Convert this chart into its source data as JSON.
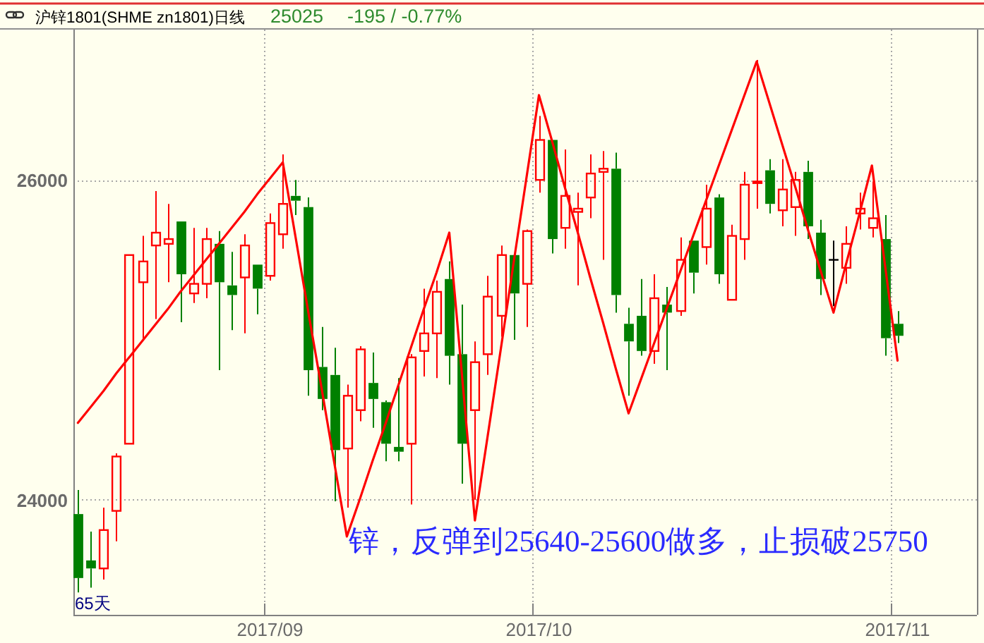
{
  "chart_data": {
    "type": "candlestick",
    "title": "沪锌1801(SHME zn1801)日线",
    "annotations": [
      "25025",
      "-195 / -0.77%",
      "锌，反弹到25640-25600做多，止损破25750",
      "65天"
    ],
    "categories": [
      null,
      null,
      null,
      null,
      null,
      null,
      null,
      null,
      null,
      null,
      null,
      null,
      null,
      null,
      null,
      "2017/09",
      null,
      null,
      null,
      null,
      null,
      null,
      null,
      null,
      null,
      null,
      null,
      null,
      null,
      null,
      null,
      null,
      null,
      null,
      null,
      null,
      "2017/10",
      null,
      null,
      null,
      null,
      null,
      null,
      null,
      null,
      null,
      null,
      null,
      null,
      null,
      null,
      null,
      null,
      null,
      null,
      null,
      null,
      null,
      null,
      null,
      null,
      null,
      null,
      null,
      "2017/11"
    ],
    "ohlc": [
      [
        23910,
        24060,
        23420,
        23510
      ],
      [
        23620,
        23800,
        23450,
        23570
      ],
      [
        23570,
        23950,
        23500,
        23810
      ],
      [
        23930,
        24290,
        23740,
        24270
      ],
      [
        24350,
        25530,
        24350,
        25530
      ],
      [
        25360,
        25650,
        25000,
        25490
      ],
      [
        25590,
        25930,
        25130,
        25670
      ],
      [
        25600,
        25850,
        25360,
        25630
      ],
      [
        25740,
        25740,
        25110,
        25410
      ],
      [
        25290,
        25700,
        25230,
        25350
      ],
      [
        25350,
        25700,
        25260,
        25630
      ],
      [
        25600,
        25680,
        24810,
        25360
      ],
      [
        25340,
        25550,
        25060,
        25280
      ],
      [
        25390,
        25660,
        25040,
        25590
      ],
      [
        25470,
        25470,
        25160,
        25320
      ],
      [
        25400,
        25790,
        25370,
        25730
      ],
      [
        25660,
        26160,
        25570,
        25850
      ],
      [
        25900,
        26000,
        25780,
        25870
      ],
      [
        25830,
        25890,
        24650,
        24810
      ],
      [
        24830,
        25080,
        24560,
        24630
      ],
      [
        24780,
        24950,
        23990,
        24310
      ],
      [
        24320,
        24720,
        23950,
        24650
      ],
      [
        24560,
        24960,
        24490,
        24940
      ],
      [
        24730,
        24920,
        24450,
        24630
      ],
      [
        24610,
        24620,
        24240,
        24350
      ],
      [
        24330,
        24760,
        24240,
        24300
      ],
      [
        24350,
        24910,
        23970,
        24890
      ],
      [
        24930,
        25320,
        24770,
        25040
      ],
      [
        25040,
        25370,
        24760,
        25300
      ],
      [
        25380,
        25490,
        24720,
        24900
      ],
      [
        24910,
        25220,
        24100,
        24350
      ],
      [
        24560,
        24990,
        24000,
        24860
      ],
      [
        24910,
        25400,
        24780,
        25270
      ],
      [
        25150,
        25590,
        25020,
        25530
      ],
      [
        25530,
        25530,
        25000,
        25290
      ],
      [
        25350,
        25690,
        25080,
        25680
      ],
      [
        26000,
        26400,
        25920,
        26250
      ],
      [
        26250,
        26250,
        25540,
        25630
      ],
      [
        25700,
        26190,
        25570,
        25900
      ],
      [
        25800,
        25920,
        25340,
        25820
      ],
      [
        25890,
        26160,
        25760,
        26040
      ],
      [
        26050,
        26180,
        25500,
        26070
      ],
      [
        26070,
        26170,
        25170,
        25280
      ],
      [
        25100,
        25200,
        24650,
        24990
      ],
      [
        25150,
        25380,
        24900,
        24930
      ],
      [
        24930,
        25410,
        24850,
        25260
      ],
      [
        25220,
        25330,
        24810,
        25170
      ],
      [
        25180,
        25640,
        25150,
        25500
      ],
      [
        25620,
        25620,
        25290,
        25420
      ],
      [
        25580,
        25970,
        25470,
        25820
      ],
      [
        25890,
        25910,
        25350,
        25410
      ],
      [
        25250,
        25720,
        25250,
        25650
      ],
      [
        25630,
        26050,
        25500,
        25970
      ],
      [
        25980,
        26750,
        25820,
        25990
      ],
      [
        26060,
        26130,
        25790,
        25850
      ],
      [
        25810,
        26130,
        25710,
        25940
      ],
      [
        25830,
        26050,
        25650,
        26000
      ],
      [
        26050,
        26120,
        25630,
        25710
      ],
      [
        25670,
        25750,
        25280,
        25380
      ],
      [
        25500,
        25620,
        25210,
        25500
      ],
      [
        25450,
        25710,
        25350,
        25600
      ],
      [
        25790,
        25920,
        25690,
        25820
      ],
      [
        25700,
        25990,
        25640,
        25760
      ],
      [
        25630,
        25780,
        24900,
        25010
      ],
      [
        25100,
        25180,
        24980,
        25025
      ]
    ],
    "colors": [
      "#008000",
      "#008000",
      "#ff0000",
      "#ff0000",
      "#ff0000",
      "#ff0000",
      "#ff0000",
      "#ff0000",
      "#008000",
      "#ff0000",
      "#ff0000",
      "#008000",
      "#008000",
      "#ff0000",
      "#008000",
      "#ff0000",
      "#ff0000",
      "#008000",
      "#008000",
      "#008000",
      "#008000",
      "#ff0000",
      "#ff0000",
      "#008000",
      "#008000",
      "#008000",
      "#ff0000",
      "#ff0000",
      "#ff0000",
      "#008000",
      "#008000",
      "#ff0000",
      "#ff0000",
      "#ff0000",
      "#008000",
      "#ff0000",
      "#ff0000",
      "#008000",
      "#ff0000",
      "#ff0000",
      "#ff0000",
      "#ff0000",
      "#008000",
      "#008000",
      "#008000",
      "#ff0000",
      "#008000",
      "#ff0000",
      "#008000",
      "#ff0000",
      "#008000",
      "#ff0000",
      "#ff0000",
      "#ff0000",
      "#008000",
      "#ff0000",
      "#ff0000",
      "#008000",
      "#008000",
      "#000000",
      "#ff0000",
      "#ff0000",
      "#ff0000",
      "#008000",
      "#008000"
    ],
    "series": [
      {
        "type": "line",
        "color": "#ff0000",
        "values": [
          24480,
          24580,
          24680,
          24790,
          24890,
          24990,
          25090,
          25190,
          25300,
          25400,
          25500,
          25600,
          25700,
          25800,
          25910,
          26010,
          26110,
          25640,
          25170,
          24710,
          24240,
          23770,
          24000,
          24240,
          24470,
          24710,
          24950,
          25190,
          25420,
          25670,
          24770,
          23870,
          24400,
          24930,
          25470,
          26000,
          26530,
          26250,
          25960,
          25680,
          25390,
          25110,
          24820,
          24540,
          24760,
          24980,
          25200,
          25420,
          25640,
          25860,
          26080,
          26300,
          26520,
          26740,
          26480,
          26220,
          25960,
          25690,
          25430,
          25170,
          25480,
          25780,
          26090,
          25480,
          24870
        ]
      }
    ],
    "ylim": [
      23280,
      26940
    ],
    "yticks": [
      24000,
      26000
    ],
    "grid": true
  }
}
